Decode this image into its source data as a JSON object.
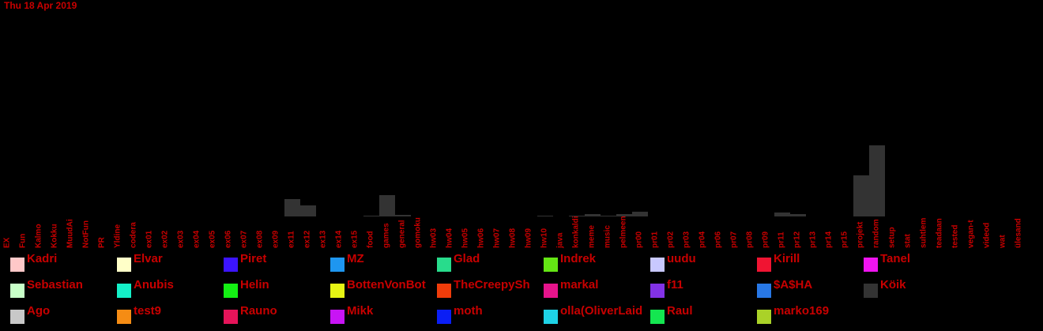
{
  "chart_data": {
    "type": "bar",
    "title": "Thu 18 Apr 2019",
    "categories": [
      "EX",
      "Fun",
      "Kalmo",
      "Kokku",
      "MuudAi",
      "NotFun",
      "PR",
      "Yldine",
      "codera",
      "ex01",
      "ex02",
      "ex03",
      "ex04",
      "ex05",
      "ex06",
      "ex07",
      "ex08",
      "ex09",
      "ex11",
      "ex12",
      "ex13",
      "ex14",
      "ex15",
      "food",
      "games",
      "general",
      "gomoku",
      "hw03",
      "hw04",
      "hw05",
      "hw06",
      "hw07",
      "hw08",
      "hw09",
      "hw10",
      "java",
      "konkaldi",
      "meme",
      "music",
      "pelmeen",
      "pr00",
      "pr01",
      "pr02",
      "pr03",
      "pr04",
      "pr06",
      "pr07",
      "pr08",
      "pr09",
      "pr11",
      "pr12",
      "pr13",
      "pr14",
      "pr15",
      "projekt",
      "random",
      "setup",
      "stat",
      "suhtlem",
      "teadaan",
      "tested",
      "vegan-t",
      "videod",
      "wat",
      "ülesand"
    ],
    "values": [
      0,
      0,
      0,
      0,
      0,
      0,
      0,
      0,
      0,
      0,
      0,
      0,
      0,
      0,
      0,
      0,
      0,
      0,
      22,
      14,
      0,
      0,
      0,
      1,
      27,
      2,
      0,
      0,
      0,
      0,
      0,
      0,
      0,
      0,
      1,
      0,
      1,
      3,
      1,
      3,
      6,
      0,
      0,
      0,
      0,
      0,
      0,
      0,
      0,
      5,
      3,
      0,
      0,
      0,
      52,
      90,
      0,
      0,
      0,
      0,
      0,
      0,
      0,
      0,
      0
    ],
    "color": "#333333",
    "ylim": [
      0,
      274
    ],
    "legend": [
      {
        "name": "Kadri",
        "color": "#ffc8c8"
      },
      {
        "name": "Elvar",
        "color": "#ffffc8"
      },
      {
        "name": "Piret",
        "color": "#3c14ff"
      },
      {
        "name": "MZ",
        "color": "#1e96f0"
      },
      {
        "name": "Glad",
        "color": "#28dc8c"
      },
      {
        "name": "Indrek",
        "color": "#64e614"
      },
      {
        "name": "uudu",
        "color": "#c8c8ff"
      },
      {
        "name": "Kirill",
        "color": "#f01432"
      },
      {
        "name": "Tanel",
        "color": "#f014f0"
      },
      {
        "name": "Sebastian",
        "color": "#c8ffc8"
      },
      {
        "name": "Anubis",
        "color": "#14f0c8"
      },
      {
        "name": "Helin",
        "color": "#14f014"
      },
      {
        "name": "BottenVonBot",
        "color": "#e6f514"
      },
      {
        "name": "TheCreepySh",
        "color": "#f03c0a"
      },
      {
        "name": "markal",
        "color": "#e6148c"
      },
      {
        "name": "f11",
        "color": "#8232e6"
      },
      {
        "name": "$A$HA",
        "color": "#2878e6"
      },
      {
        "name": "Köik",
        "color": "#333333"
      },
      {
        "name": "Ago",
        "color": "#c8c8c8"
      },
      {
        "name": "test9",
        "color": "#f58c14"
      },
      {
        "name": "Rauno",
        "color": "#e6145a"
      },
      {
        "name": "Mikk",
        "color": "#c814f5"
      },
      {
        "name": "moth",
        "color": "#0a1ef5"
      },
      {
        "name": "olla(OliverLaid",
        "color": "#1ed2e6"
      },
      {
        "name": "Raul",
        "color": "#14e650"
      },
      {
        "name": "marko169",
        "color": "#aad228"
      }
    ]
  }
}
